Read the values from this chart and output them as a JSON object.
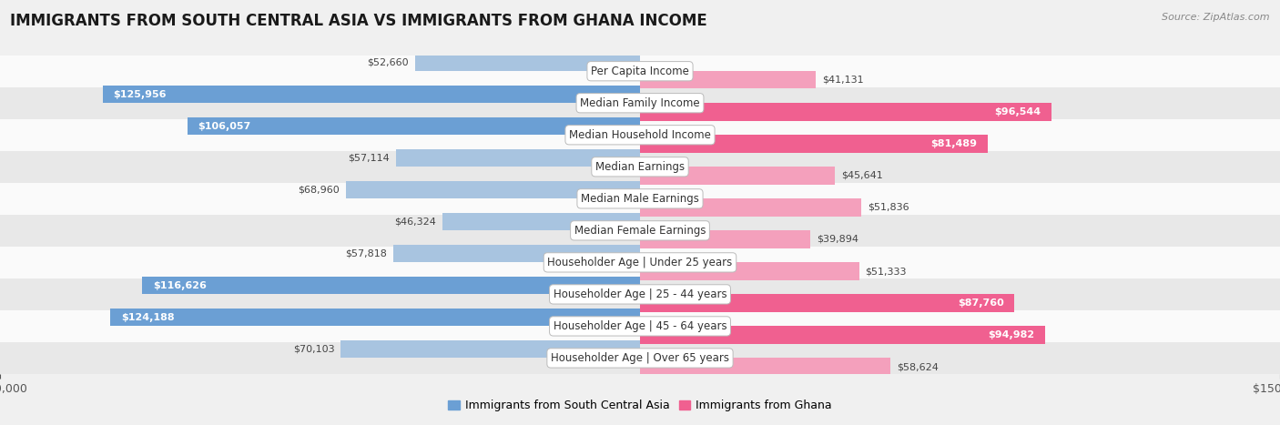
{
  "title": "IMMIGRANTS FROM SOUTH CENTRAL ASIA VS IMMIGRANTS FROM GHANA INCOME",
  "source": "Source: ZipAtlas.com",
  "categories": [
    "Per Capita Income",
    "Median Family Income",
    "Median Household Income",
    "Median Earnings",
    "Median Male Earnings",
    "Median Female Earnings",
    "Householder Age | Under 25 years",
    "Householder Age | 25 - 44 years",
    "Householder Age | 45 - 64 years",
    "Householder Age | Over 65 years"
  ],
  "south_central_asia": [
    52660,
    125956,
    106057,
    57114,
    68960,
    46324,
    57818,
    116626,
    124188,
    70103
  ],
  "ghana": [
    41131,
    96544,
    81489,
    45641,
    51836,
    39894,
    51333,
    87760,
    94982,
    58624
  ],
  "south_central_asia_labels": [
    "$52,660",
    "$125,956",
    "$106,057",
    "$57,114",
    "$68,960",
    "$46,324",
    "$57,818",
    "$116,626",
    "$124,188",
    "$70,103"
  ],
  "ghana_labels": [
    "$41,131",
    "$96,544",
    "$81,489",
    "$45,641",
    "$51,836",
    "$39,894",
    "$51,333",
    "$87,760",
    "$94,982",
    "$58,624"
  ],
  "color_asia": "#a8c4e0",
  "color_ghana": "#f4a0bc",
  "color_asia_large": "#6b9fd4",
  "color_ghana_large": "#f06090",
  "bar_height": 0.55,
  "xlim": 150000,
  "bg_color": "#f0f0f0",
  "row_bg_light": "#fafafa",
  "row_bg_dark": "#e8e8e8",
  "label_fontsize": 9,
  "title_fontsize": 12,
  "source_fontsize": 8,
  "legend_label_asia": "Immigrants from South Central Asia",
  "legend_label_ghana": "Immigrants from Ghana",
  "asia_threshold": 80000,
  "ghana_threshold": 60000
}
